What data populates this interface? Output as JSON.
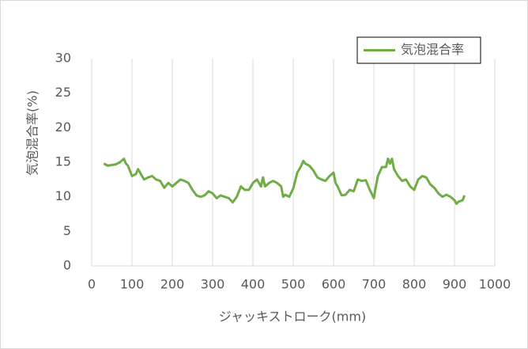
{
  "chart_data": {
    "type": "line",
    "x_label": "ジャッキストローク(mm)",
    "y_label": "気泡混合率(%)",
    "x": [
      30,
      40,
      50,
      60,
      70,
      80,
      85,
      90,
      100,
      110,
      115,
      120,
      130,
      140,
      150,
      160,
      170,
      180,
      190,
      200,
      210,
      220,
      230,
      240,
      250,
      260,
      270,
      280,
      290,
      300,
      310,
      320,
      330,
      340,
      350,
      360,
      370,
      380,
      390,
      400,
      410,
      420,
      425,
      430,
      440,
      450,
      460,
      470,
      475,
      480,
      490,
      500,
      510,
      520,
      525,
      530,
      540,
      550,
      560,
      570,
      580,
      590,
      600,
      605,
      610,
      620,
      630,
      640,
      650,
      660,
      670,
      680,
      690,
      700,
      705,
      710,
      720,
      730,
      735,
      740,
      745,
      750,
      760,
      770,
      780,
      790,
      800,
      810,
      820,
      830,
      840,
      850,
      860,
      870,
      880,
      890,
      900,
      905,
      910,
      920,
      925
    ],
    "series": [
      {
        "name": "気泡混合率",
        "color": "#70ad47",
        "values": [
          14.8,
          14.5,
          14.6,
          14.7,
          15.0,
          15.5,
          14.8,
          14.5,
          13.0,
          13.3,
          14.0,
          13.5,
          12.5,
          12.8,
          13.0,
          12.5,
          12.3,
          11.3,
          12.0,
          11.5,
          12.0,
          12.5,
          12.3,
          12.0,
          11.0,
          10.2,
          10.0,
          10.2,
          10.8,
          10.5,
          9.8,
          10.2,
          10.0,
          9.8,
          9.2,
          10.0,
          11.5,
          11.0,
          11.0,
          12.0,
          12.5,
          11.5,
          12.8,
          11.5,
          12.0,
          12.3,
          12.0,
          11.5,
          10.0,
          10.3,
          10.0,
          11.2,
          13.5,
          14.5,
          15.2,
          14.8,
          14.5,
          13.8,
          12.8,
          12.5,
          12.3,
          13.0,
          13.5,
          12.0,
          11.5,
          10.2,
          10.3,
          11.0,
          10.8,
          12.5,
          12.3,
          12.4,
          11.0,
          9.8,
          11.5,
          13.0,
          14.3,
          14.3,
          15.5,
          14.8,
          15.5,
          14.0,
          13.0,
          12.3,
          12.5,
          11.5,
          11.0,
          12.5,
          13.0,
          12.8,
          11.8,
          11.3,
          10.5,
          10.0,
          10.3,
          10.0,
          9.5,
          9.0,
          9.3,
          9.5,
          10.2
        ]
      }
    ],
    "xlim": [
      0,
      1000
    ],
    "xticks": [
      0,
      100,
      200,
      300,
      400,
      500,
      600,
      700,
      800,
      900,
      1000
    ],
    "ylim": [
      0,
      30
    ],
    "yticks": [
      0,
      5,
      10,
      15,
      20,
      25,
      30
    ],
    "grid": {
      "x": true,
      "y": false
    },
    "legend": "upper right"
  }
}
